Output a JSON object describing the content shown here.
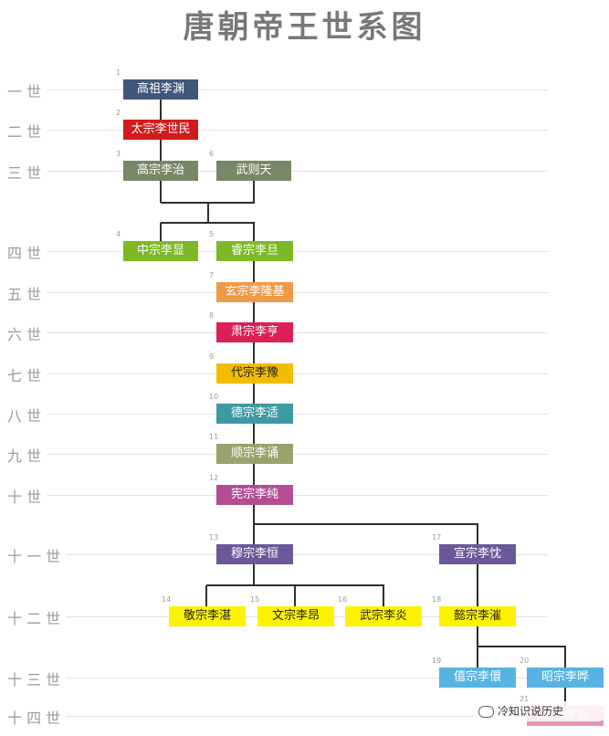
{
  "title": "唐朝帝王世系图",
  "generations": [
    "一 世",
    "二 世",
    "三 世",
    "四 世",
    "五 世",
    "六 世",
    "七 世",
    "八 世",
    "九 世",
    "十 世",
    "十 一 世",
    "十 二 世",
    "十 三 世",
    "十 四 世"
  ],
  "emperors": [
    {
      "num": "1",
      "name": "高祖李渊",
      "color": "#41577a"
    },
    {
      "num": "2",
      "name": "太宗李世民",
      "color": "#d21c1c"
    },
    {
      "num": "3",
      "name": "高宗李治",
      "color": "#788866"
    },
    {
      "num": "6",
      "name": "武则天",
      "color": "#788866"
    },
    {
      "num": "4",
      "name": "中宗李显",
      "color": "#7db926"
    },
    {
      "num": "5",
      "name": "睿宗李旦",
      "color": "#7db926"
    },
    {
      "num": "7",
      "name": "玄宗李隆基",
      "color": "#ef9a45"
    },
    {
      "num": "8",
      "name": "肃宗李亨",
      "color": "#dc1f55"
    },
    {
      "num": "9",
      "name": "代宗李豫",
      "color": "#f2bd00"
    },
    {
      "num": "10",
      "name": "德宗李适",
      "color": "#3d9aa0"
    },
    {
      "num": "11",
      "name": "顺宗李诵",
      "color": "#98a36d"
    },
    {
      "num": "12",
      "name": "宪宗李纯",
      "color": "#b34e94"
    },
    {
      "num": "13",
      "name": "穆宗李恒",
      "color": "#6a5898"
    },
    {
      "num": "17",
      "name": "宣宗李忱",
      "color": "#6a5898"
    },
    {
      "num": "14",
      "name": "敬宗李湛",
      "color": "#fff200"
    },
    {
      "num": "15",
      "name": "文宗李昂",
      "color": "#fff200"
    },
    {
      "num": "16",
      "name": "武宗李炎",
      "color": "#fff200"
    },
    {
      "num": "18",
      "name": "懿宗李漼",
      "color": "#fff200"
    },
    {
      "num": "19",
      "name": "僖宗李儇",
      "color": "#57b4e0"
    },
    {
      "num": "20",
      "name": "昭宗李晔",
      "color": "#57b4e0"
    },
    {
      "num": "21",
      "name": "哀帝李柷",
      "color": "#e893b4"
    }
  ],
  "watermark": {
    "text": "冷知识说历史",
    "icon": "wechat-icon"
  }
}
